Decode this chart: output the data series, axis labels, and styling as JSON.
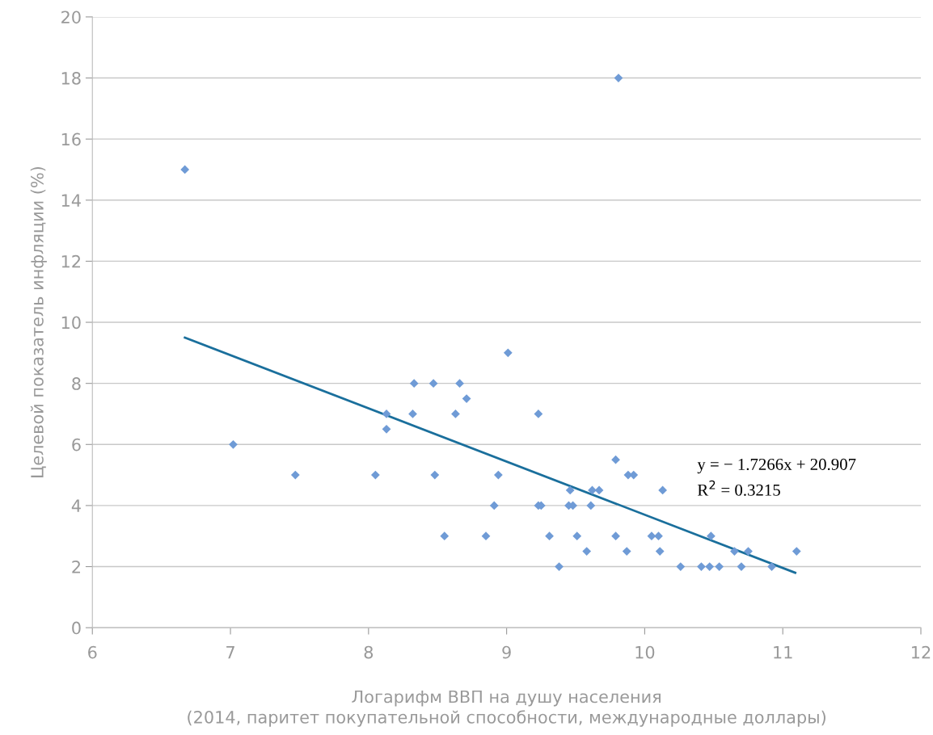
{
  "chart_data": {
    "type": "scatter",
    "xlabel": "Логарифм ВВП на душу населения\n(2014, паритет покупательной способности, международные доллары)",
    "ylabel": "Целевой показатель инфляции (%)",
    "xlim": [
      6,
      12
    ],
    "xticks": [
      6,
      7,
      8,
      9,
      10,
      11,
      12
    ],
    "ylim": [
      0,
      20
    ],
    "yticks": [
      0,
      2,
      4,
      6,
      8,
      10,
      12,
      14,
      16,
      18,
      20
    ],
    "grid": "y",
    "marker": "diamond",
    "annotations": [
      "y = − 1.7266x + 20.907",
      "R$^{2}$ = 0.3215"
    ],
    "series": [
      {
        "color": "#6f9bd6",
        "x": [
          6.67,
          7.02,
          7.47,
          8.05,
          8.13,
          8.13,
          8.33,
          8.32,
          8.47,
          8.48,
          8.55,
          8.66,
          8.63,
          8.71,
          8.85,
          8.91,
          8.94,
          9.01,
          9.23,
          9.23,
          9.25,
          9.31,
          9.38,
          9.45,
          9.48,
          9.46,
          9.51,
          9.58,
          9.61,
          9.62,
          9.67,
          9.79,
          9.81,
          9.79,
          9.88,
          9.92,
          9.87,
          10.05,
          10.1,
          10.11,
          10.13,
          10.26,
          10.41,
          10.47,
          10.48,
          10.54,
          10.65,
          10.7,
          10.75,
          10.92,
          11.1
        ],
        "values": [
          15,
          6,
          5,
          5,
          7,
          6.5,
          8,
          7,
          8,
          5,
          3,
          8,
          7,
          7.5,
          3,
          4,
          5,
          9,
          7,
          4,
          4,
          3,
          2,
          4,
          4,
          4.5,
          3,
          2.5,
          4,
          4.5,
          4.5,
          5.5,
          18,
          3,
          5,
          5,
          2.5,
          3,
          3,
          2.5,
          4.5,
          2,
          2,
          2,
          3,
          2,
          2.5,
          2,
          2.5,
          2,
          2.5
        ]
      },
      {
        "type": "line",
        "marker": "none",
        "color": "#1a6f9c",
        "x": [
          6.67,
          11.09
        ],
        "values": [
          9.5,
          1.8
        ]
      }
    ]
  }
}
